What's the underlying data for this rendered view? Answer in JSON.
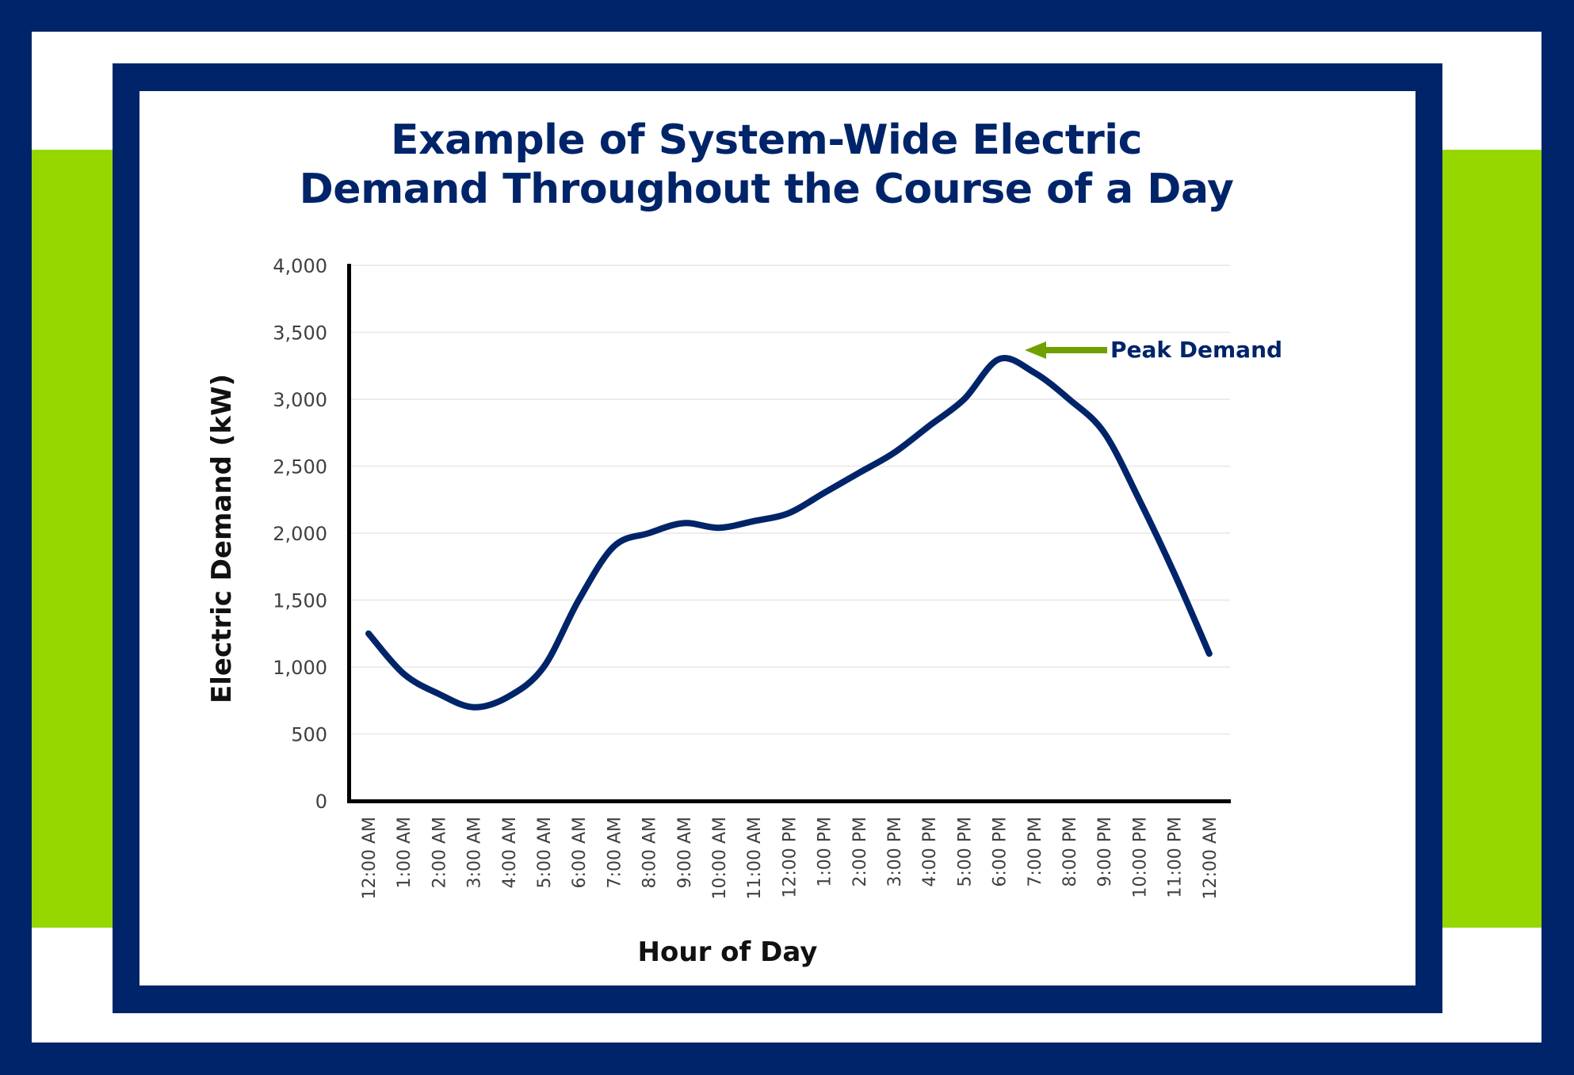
{
  "frame": {
    "navy": "#002469",
    "green": "#96D700",
    "arrow_green": "#70A000",
    "line_color": "#002469"
  },
  "title": {
    "line1": "Example of System-Wide Electric",
    "line2": "Demand Throughout the Course of a Day"
  },
  "annotation": {
    "label": "Peak Demand",
    "target_category": "6:00 PM",
    "arrow": "left-pointing-arrow"
  },
  "chart_data": {
    "type": "line",
    "title": "Example of System-Wide Electric Demand Throughout the Course of a Day",
    "xlabel": "Hour of Day",
    "ylabel": "Electric Demand (kW)",
    "ylim": [
      0,
      4000
    ],
    "yticks": [
      0,
      500,
      1000,
      1500,
      2000,
      2500,
      3000,
      3500,
      4000
    ],
    "ytick_labels": [
      "0",
      "500",
      "1,000",
      "1,500",
      "2,000",
      "2,500",
      "3,000",
      "3,500",
      "4,000"
    ],
    "grid": "horizontal",
    "legend": "none",
    "smooth": true,
    "categories": [
      "12:00 AM",
      "1:00 AM",
      "2:00 AM",
      "3:00 AM",
      "4:00 AM",
      "5:00 AM",
      "6:00 AM",
      "7:00 AM",
      "8:00 AM",
      "9:00 AM",
      "10:00 AM",
      "11:00 AM",
      "12:00 PM",
      "1:00 PM",
      "2:00 PM",
      "3:00 PM",
      "4:00 PM",
      "5:00 PM",
      "6:00 PM",
      "7:00 PM",
      "8:00 PM",
      "9:00 PM",
      "10:00 PM",
      "11:00 PM",
      "12:00 AM"
    ],
    "series": [
      {
        "name": "Electric Demand",
        "values": [
          1250,
          950,
          800,
          700,
          780,
          1000,
          1500,
          1900,
          2000,
          2075,
          2040,
          2090,
          2150,
          2300,
          2450,
          2600,
          2800,
          3000,
          3300,
          3200,
          3000,
          2750,
          2250,
          1700,
          1100
        ]
      }
    ],
    "annotations": [
      {
        "text": "Peak Demand",
        "x": "6:00 PM",
        "y": 3325,
        "arrow": true
      }
    ]
  }
}
